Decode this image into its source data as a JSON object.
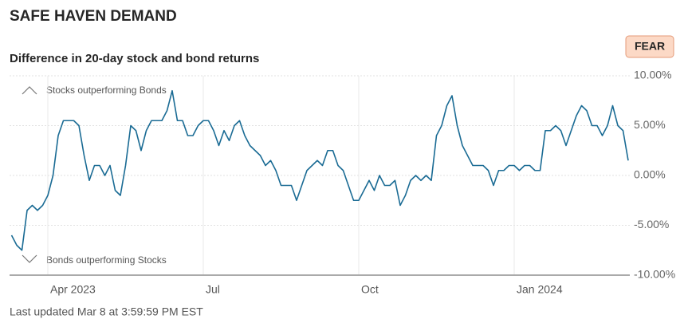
{
  "chart_data": {
    "type": "line",
    "title": "SAFE HAVEN DEMAND",
    "subtitle": "Difference in 20-day stock and bond returns",
    "badge": "FEAR",
    "annotations": [
      "Stocks outperforming Bonds",
      "Bonds outperforming Stocks"
    ],
    "footer": "Last updated Mar 8 at 3:59:59 PM EST",
    "color": "#1a6b94",
    "grid": true,
    "ylim": [
      -10,
      10
    ],
    "yticks": [
      {
        "value": 10,
        "label": "10.00%"
      },
      {
        "value": 5,
        "label": "5.00%"
      },
      {
        "value": 0,
        "label": "0.00%"
      },
      {
        "value": -5,
        "label": "-5.00%"
      },
      {
        "value": -10,
        "label": "-10.00%"
      }
    ],
    "categories": [
      null,
      null,
      null,
      null,
      null,
      null,
      null,
      "Apr 2023",
      null,
      null,
      null,
      null,
      null,
      null,
      null,
      null,
      null,
      null,
      null,
      null,
      null,
      null,
      null,
      null,
      null,
      null,
      null,
      null,
      null,
      null,
      null,
      null,
      null,
      null,
      null,
      null,
      null,
      "Jul",
      null,
      null,
      null,
      null,
      null,
      null,
      null,
      null,
      null,
      null,
      null,
      null,
      null,
      null,
      null,
      null,
      null,
      null,
      null,
      null,
      null,
      null,
      null,
      null,
      null,
      null,
      null,
      null,
      null,
      "Oct",
      null,
      null,
      null,
      null,
      null,
      null,
      null,
      null,
      null,
      null,
      null,
      null,
      null,
      null,
      null,
      null,
      null,
      null,
      null,
      null,
      null,
      null,
      null,
      null,
      null,
      null,
      null,
      null,
      null,
      "Jan 2024",
      null,
      null,
      null,
      null,
      null,
      null,
      null,
      null,
      null,
      null,
      null,
      null,
      null,
      null,
      null,
      null,
      null,
      null,
      null,
      null,
      null,
      null
    ],
    "values": [
      -6,
      -7,
      -7.5,
      -3.5,
      -3,
      -3.5,
      -3,
      -2,
      0,
      4,
      5.5,
      5.5,
      5.5,
      5,
      2,
      -0.5,
      1,
      1,
      0,
      1,
      -1.5,
      -2,
      1,
      5,
      4.5,
      2.5,
      4.5,
      5.5,
      5.5,
      5.5,
      6.5,
      8.5,
      5.5,
      5.5,
      4,
      4,
      5,
      5.5,
      5.5,
      4.5,
      3,
      4.5,
      3.5,
      5,
      5.5,
      4,
      3,
      2.5,
      2,
      1,
      1.5,
      0.5,
      -1,
      -1,
      -1,
      -2.5,
      -1,
      0.5,
      1,
      1.5,
      1,
      2.5,
      2.5,
      1,
      0.5,
      -1,
      -2.5,
      -2.5,
      -1.5,
      -0.5,
      -1.5,
      0,
      -1,
      -1,
      -0.5,
      -3,
      -2,
      -0.5,
      0,
      -0.5,
      0,
      -0.5,
      4,
      5,
      7,
      8,
      5,
      3,
      2,
      1,
      1,
      1,
      0.5,
      -1,
      0.5,
      0.5,
      1,
      1,
      0.5,
      1,
      1,
      0.5,
      0.5,
      4.5,
      4.5,
      5,
      4.5,
      3,
      4.5,
      6,
      7,
      6.5,
      5,
      5,
      4,
      5,
      7,
      5,
      4.5,
      1.5
    ]
  }
}
